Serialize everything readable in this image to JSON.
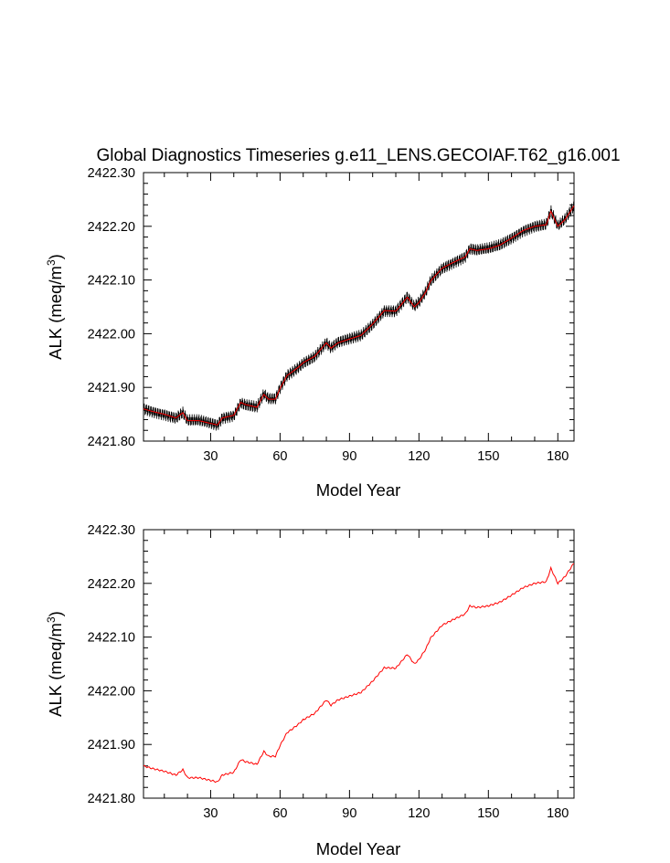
{
  "chart_data": [
    {
      "type": "line",
      "title": "Global Diagnostics Timeseries g.e11_LENS.GECOIAF.T62_g16.001",
      "xlabel": "Model Year",
      "ylabel": "ALK (meq/m",
      "ylabel_superscript": "3",
      "ylabel_close": ")",
      "xlim": [
        1,
        187
      ],
      "ylim": [
        2421.8,
        2422.3
      ],
      "x_ticks": [
        "30",
        "60",
        "90",
        "120",
        "150",
        "180"
      ],
      "y_ticks": [
        "2421.80",
        "2421.90",
        "2422.00",
        "2422.10",
        "2422.20",
        "2422.30"
      ],
      "grid": false,
      "series": [
        {
          "color": "#000000",
          "style": "monthly-oscillating",
          "oscillation_amplitude": 0.012,
          "x": [
            1,
            5,
            10,
            15,
            18,
            20,
            25,
            30,
            33,
            35,
            40,
            43,
            45,
            50,
            53,
            55,
            58,
            60,
            63,
            65,
            68,
            70,
            75,
            80,
            82,
            85,
            90,
            95,
            100,
            105,
            110,
            115,
            118,
            120,
            123,
            125,
            130,
            135,
            140,
            142,
            145,
            150,
            155,
            160,
            165,
            170,
            175,
            177,
            180,
            183,
            187
          ],
          "y": [
            2421.86,
            2421.855,
            2421.85,
            2421.843,
            2421.853,
            2421.838,
            2421.838,
            2421.833,
            2421.83,
            2421.843,
            2421.848,
            2421.872,
            2421.868,
            2421.863,
            2421.887,
            2421.878,
            2421.878,
            2421.898,
            2421.922,
            2421.928,
            2421.938,
            2421.946,
            2421.958,
            2421.983,
            2421.973,
            2421.983,
            2421.99,
            2421.997,
            2422.018,
            2422.043,
            2422.042,
            2422.068,
            2422.05,
            2422.058,
            2422.078,
            2422.098,
            2422.122,
            2422.133,
            2422.143,
            2422.158,
            2422.155,
            2422.158,
            2422.165,
            2422.178,
            2422.192,
            2422.2,
            2422.203,
            2422.228,
            2422.2,
            2422.212,
            2422.238
          ]
        },
        {
          "color": "#ff0000",
          "style": "annual-mean",
          "x": [
            1,
            5,
            10,
            15,
            18,
            20,
            25,
            30,
            33,
            35,
            40,
            43,
            45,
            50,
            53,
            55,
            58,
            60,
            63,
            65,
            68,
            70,
            75,
            80,
            82,
            85,
            90,
            95,
            100,
            105,
            110,
            115,
            118,
            120,
            123,
            125,
            130,
            135,
            140,
            142,
            145,
            150,
            155,
            160,
            165,
            170,
            175,
            177,
            180,
            183,
            187
          ],
          "y": [
            2421.86,
            2421.855,
            2421.85,
            2421.843,
            2421.853,
            2421.838,
            2421.838,
            2421.833,
            2421.83,
            2421.843,
            2421.848,
            2421.872,
            2421.868,
            2421.863,
            2421.887,
            2421.878,
            2421.878,
            2421.898,
            2421.922,
            2421.928,
            2421.938,
            2421.946,
            2421.958,
            2421.983,
            2421.973,
            2421.983,
            2421.99,
            2421.997,
            2422.018,
            2422.043,
            2422.042,
            2422.068,
            2422.05,
            2422.058,
            2422.078,
            2422.098,
            2422.122,
            2422.133,
            2422.143,
            2422.158,
            2422.155,
            2422.158,
            2422.165,
            2422.178,
            2422.192,
            2422.2,
            2422.203,
            2422.228,
            2422.2,
            2422.212,
            2422.238
          ]
        }
      ]
    },
    {
      "type": "line",
      "title": "",
      "xlabel": "Model Year",
      "ylabel": "ALK (meq/m",
      "ylabel_superscript": "3",
      "ylabel_close": ")",
      "xlim": [
        1,
        187
      ],
      "ylim": [
        2421.8,
        2422.3
      ],
      "x_ticks": [
        "30",
        "60",
        "90",
        "120",
        "150",
        "180"
      ],
      "y_ticks": [
        "2421.80",
        "2421.90",
        "2422.00",
        "2422.10",
        "2422.20",
        "2422.30"
      ],
      "grid": false,
      "series": [
        {
          "color": "#ff0000",
          "style": "annual-mean",
          "x": [
            1,
            5,
            10,
            15,
            18,
            20,
            25,
            30,
            33,
            35,
            40,
            43,
            45,
            50,
            53,
            55,
            58,
            60,
            63,
            65,
            68,
            70,
            75,
            80,
            82,
            85,
            90,
            95,
            100,
            105,
            110,
            115,
            118,
            120,
            123,
            125,
            130,
            135,
            140,
            142,
            145,
            150,
            155,
            160,
            165,
            170,
            175,
            177,
            180,
            183,
            187
          ],
          "y": [
            2421.86,
            2421.855,
            2421.85,
            2421.843,
            2421.853,
            2421.838,
            2421.838,
            2421.833,
            2421.83,
            2421.843,
            2421.848,
            2421.872,
            2421.868,
            2421.863,
            2421.887,
            2421.878,
            2421.878,
            2421.898,
            2421.922,
            2421.928,
            2421.938,
            2421.946,
            2421.958,
            2421.983,
            2421.973,
            2421.983,
            2421.99,
            2421.997,
            2422.018,
            2422.043,
            2422.042,
            2422.068,
            2422.05,
            2422.058,
            2422.078,
            2422.098,
            2422.122,
            2422.133,
            2422.143,
            2422.158,
            2422.155,
            2422.158,
            2422.165,
            2422.178,
            2422.192,
            2422.2,
            2422.203,
            2422.228,
            2422.2,
            2422.212,
            2422.238
          ]
        }
      ]
    }
  ]
}
